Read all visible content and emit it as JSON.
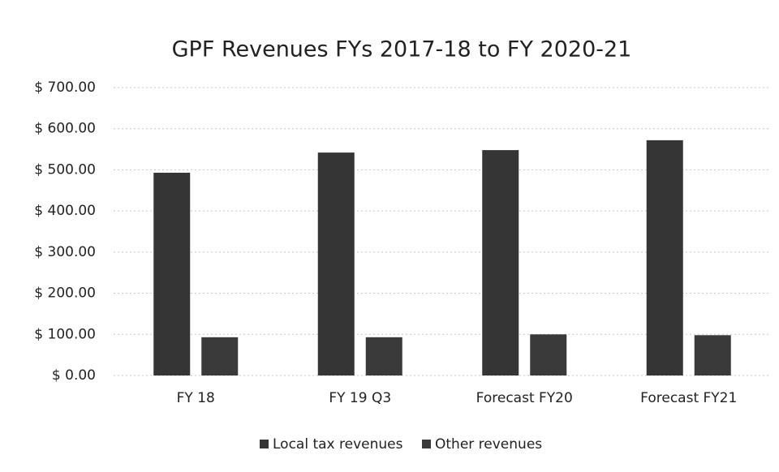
{
  "chart_data": {
    "type": "bar",
    "title": "GPF Revenues FYs 2017-18 to FY 2020-21",
    "categories": [
      "FY 18",
      "FY 19 Q3",
      "Forecast FY20",
      "Forecast FY21"
    ],
    "series": [
      {
        "name": "Local tax revenues",
        "color": "#353535",
        "values": [
          493,
          542,
          548,
          572
        ]
      },
      {
        "name": "Other revenues",
        "color": "#3a3a3a",
        "values": [
          93,
          93,
          100,
          98
        ]
      }
    ],
    "ylim": [
      0,
      700
    ],
    "yticks": [
      {
        "value": 0,
        "label": "$ 0.00"
      },
      {
        "value": 100,
        "label": "$ 100.00"
      },
      {
        "value": 200,
        "label": "$ 200.00"
      },
      {
        "value": 300,
        "label": "$ 300.00"
      },
      {
        "value": 400,
        "label": "$ 400.00"
      },
      {
        "value": 500,
        "label": "$ 500.00"
      },
      {
        "value": 600,
        "label": "$ 600.00"
      },
      {
        "value": 700,
        "label": "$ 700.00"
      }
    ],
    "grid": true,
    "legend": "bottom"
  }
}
